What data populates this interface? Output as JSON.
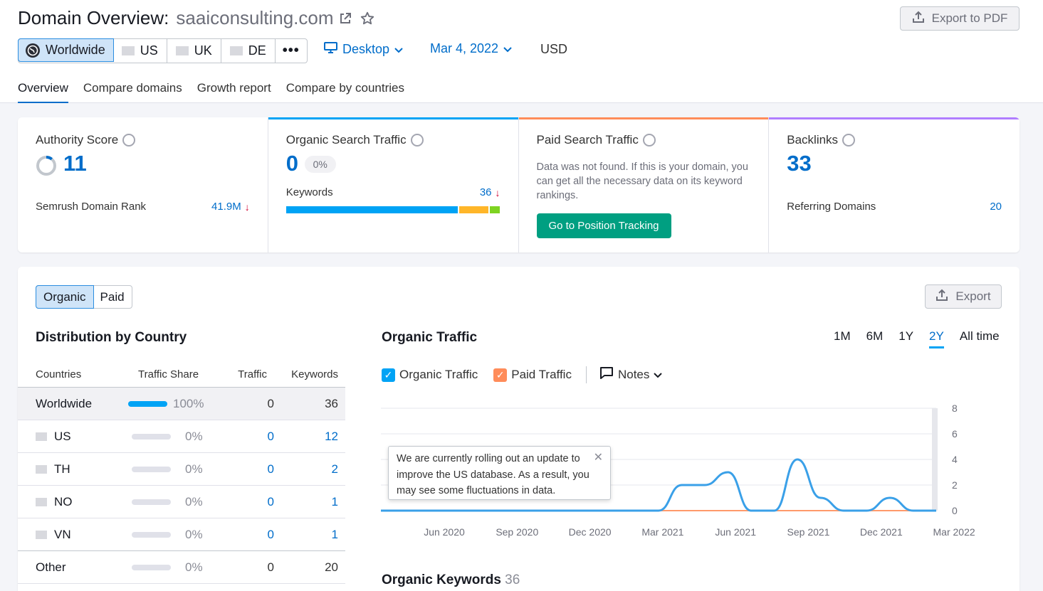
{
  "header": {
    "title": "Domain Overview:",
    "domain": "saaiconsulting.com",
    "export_pdf": "Export to PDF",
    "databases": [
      "Worldwide",
      "US",
      "UK",
      "DE"
    ],
    "more": "•••",
    "device": "Desktop",
    "date": "Mar 4, 2022",
    "currency": "USD"
  },
  "tabs": [
    "Overview",
    "Compare domains",
    "Growth report",
    "Compare by countries"
  ],
  "cards": {
    "authority": {
      "title": "Authority Score",
      "value": "11",
      "sub_label": "Semrush Domain Rank",
      "sub_value": "41.9M",
      "score_fraction": 0.11
    },
    "organic": {
      "title": "Organic Search Traffic",
      "value": "0",
      "badge": "0%",
      "kw_label": "Keywords",
      "kw_value": "36"
    },
    "paid": {
      "title": "Paid Search Traffic",
      "message": "Data was not found. If this is your domain, you can get all the necessary data on its keyword rankings.",
      "button": "Go to Position Tracking"
    },
    "backlinks": {
      "title": "Backlinks",
      "value": "33",
      "sub_label": "Referring Domains",
      "sub_value": "20"
    }
  },
  "colors": {
    "accent": "#006dca",
    "organic": "#00a3f5",
    "paid": "#ff642d",
    "backlinks": "#9a58ff",
    "green": "#009f81",
    "down": "#d1002f"
  },
  "panel": {
    "segments": [
      "Organic",
      "Paid"
    ],
    "export": "Export",
    "distribution": {
      "title": "Distribution by Country",
      "columns": [
        "Countries",
        "Traffic Share",
        "Traffic",
        "Keywords"
      ],
      "rows": [
        {
          "country": "Worldwide",
          "share": "100%",
          "traffic": "0",
          "keywords": "36"
        },
        {
          "country": "US",
          "share": "0%",
          "traffic": "0",
          "keywords": "12"
        },
        {
          "country": "TH",
          "share": "0%",
          "traffic": "0",
          "keywords": "2"
        },
        {
          "country": "NO",
          "share": "0%",
          "traffic": "0",
          "keywords": "1"
        },
        {
          "country": "VN",
          "share": "0%",
          "traffic": "0",
          "keywords": "1"
        },
        {
          "country": "Other",
          "share": "0%",
          "traffic": "0",
          "keywords": "20"
        }
      ]
    },
    "traffic": {
      "title": "Organic Traffic",
      "ranges": [
        "1M",
        "6M",
        "1Y",
        "2Y",
        "All time"
      ],
      "legend": {
        "organic": "Organic Traffic",
        "paid": "Paid Traffic",
        "notes": "Notes"
      },
      "tooltip": "We are currently rolling out an update to improve the US database. As a result, you may see some fluctuations in data."
    },
    "keywords": {
      "title": "Organic Keywords",
      "count": "36"
    }
  },
  "chart_data": {
    "type": "line",
    "title": "Organic Traffic",
    "x_ticks": [
      "Jun 2020",
      "Sep 2020",
      "Dec 2020",
      "Mar 2021",
      "Jun 2021",
      "Sep 2021",
      "Dec 2021",
      "Mar 2022"
    ],
    "y_ticks": [
      0,
      2,
      4,
      6,
      8
    ],
    "ylim": [
      0,
      8
    ],
    "grid": true,
    "series": [
      {
        "name": "Organic Traffic",
        "color": "#3aa0e8",
        "x": [
          "Mar 2020",
          "Apr 2020",
          "May 2020",
          "Jun 2020",
          "Jul 2020",
          "Aug 2020",
          "Sep 2020",
          "Oct 2020",
          "Nov 2020",
          "Dec 2020",
          "Jan 2021",
          "Feb 2021",
          "Mar 2021",
          "Apr 2021",
          "May 2021",
          "Jun 2021",
          "Jul 2021",
          "Aug 2021",
          "Sep 2021",
          "Oct 2021",
          "Nov 2021",
          "Dec 2021",
          "Jan 2022",
          "Feb 2022",
          "Mar 2022"
        ],
        "values": [
          0,
          0,
          0,
          0,
          0,
          0,
          0,
          0,
          0,
          0,
          0,
          0,
          0,
          2,
          2,
          3,
          0,
          0,
          4,
          1,
          0,
          0,
          1,
          0,
          0
        ]
      },
      {
        "name": "Paid Traffic",
        "color": "#ff9a6b",
        "x": [
          "Mar 2020",
          "Mar 2022"
        ],
        "values": [
          0,
          0
        ]
      }
    ]
  }
}
